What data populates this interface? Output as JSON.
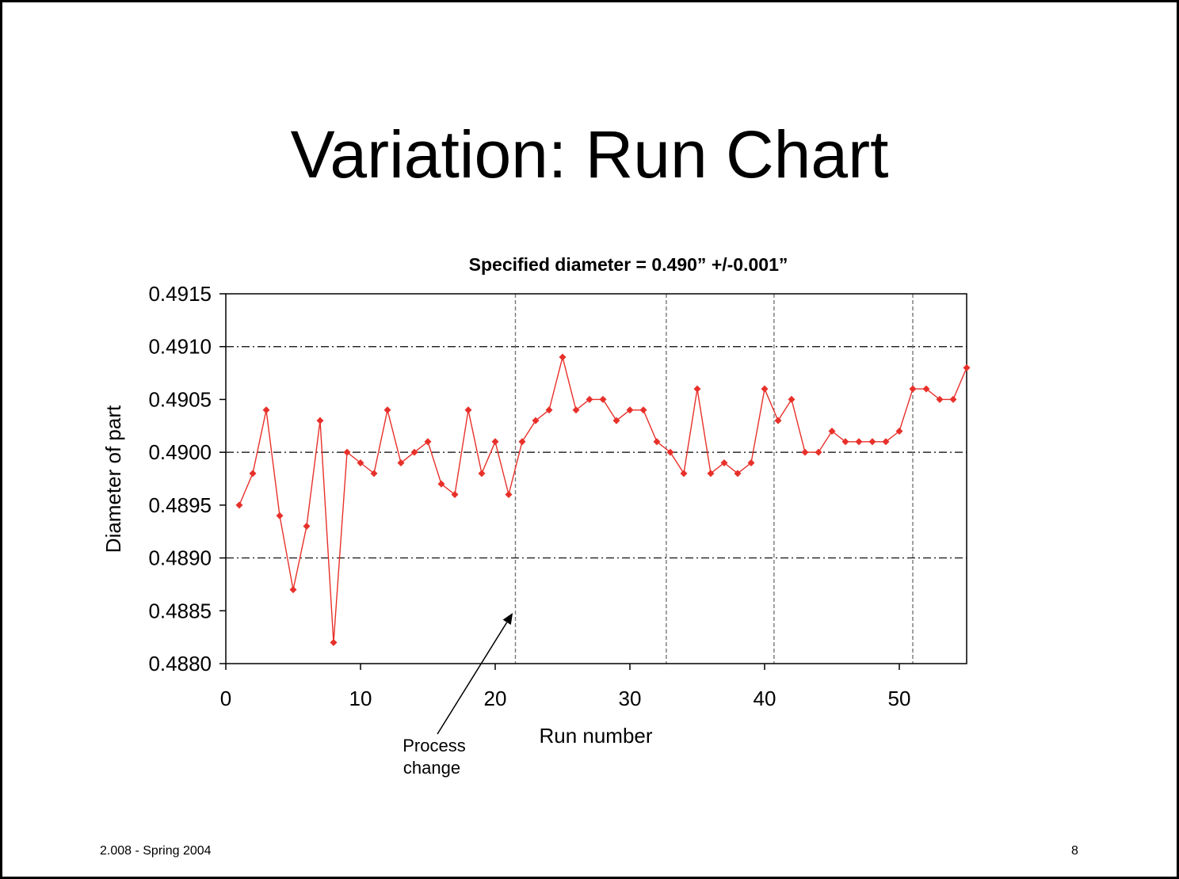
{
  "slide": {
    "title": "Variation: Run Chart",
    "footer_left": "2.008 - Spring 2004",
    "page_number": "8"
  },
  "chart_data": {
    "type": "line",
    "title": "Specified diameter = 0.490” +/-0.001”",
    "xlabel": "Run number",
    "ylabel": "Diameter of part",
    "xlim": [
      0,
      55
    ],
    "ylim": [
      0.488,
      0.4915
    ],
    "x_ticks": [
      "0",
      "10",
      "20",
      "30",
      "40",
      "50"
    ],
    "y_ticks": [
      "0.4880",
      "0.4885",
      "0.4890",
      "0.4895",
      "0.4900",
      "0.4905",
      "0.4910",
      "0.4915"
    ],
    "grid": false,
    "legend": "none",
    "series_color": "#e8302a",
    "reference_lines_y": [
      0.489,
      0.49,
      0.491
    ],
    "vertical_dividers_x": [
      21.5,
      32.7,
      40.7,
      51
    ],
    "annotation": {
      "lines": [
        "Process",
        "change"
      ],
      "points_to_x": 21.3,
      "points_to_y": 0.48848
    },
    "series": [
      {
        "x": [
          1,
          2,
          3,
          4,
          5,
          6,
          7,
          8,
          9,
          10,
          11,
          12,
          13,
          14,
          15,
          16,
          17,
          18,
          19,
          20,
          21,
          22,
          23,
          24,
          25,
          26,
          27,
          28,
          29,
          30,
          31,
          32,
          33,
          34,
          35,
          36,
          37,
          38,
          39,
          40,
          41,
          42,
          43,
          44,
          45,
          46,
          47,
          48,
          49,
          50,
          51,
          52,
          53,
          54,
          55
        ],
        "values": [
          0.4895,
          0.4898,
          0.4904,
          0.4894,
          0.4887,
          0.4893,
          0.4903,
          0.4882,
          0.49,
          0.4899,
          0.4898,
          0.4904,
          0.4899,
          0.49,
          0.4901,
          0.4897,
          0.4896,
          0.4904,
          0.4898,
          0.4901,
          0.4896,
          0.4901,
          0.4903,
          0.4904,
          0.4909,
          0.4904,
          0.4905,
          0.4905,
          0.4903,
          0.4904,
          0.4904,
          0.4901,
          0.49,
          0.4898,
          0.4906,
          0.4898,
          0.4899,
          0.4898,
          0.4899,
          0.4906,
          0.4903,
          0.4905,
          0.49,
          0.49,
          0.4902,
          0.4901,
          0.4901,
          0.4901,
          0.4901,
          0.4902,
          0.4906,
          0.4906,
          0.4905,
          0.4905,
          0.4908
        ]
      }
    ]
  }
}
